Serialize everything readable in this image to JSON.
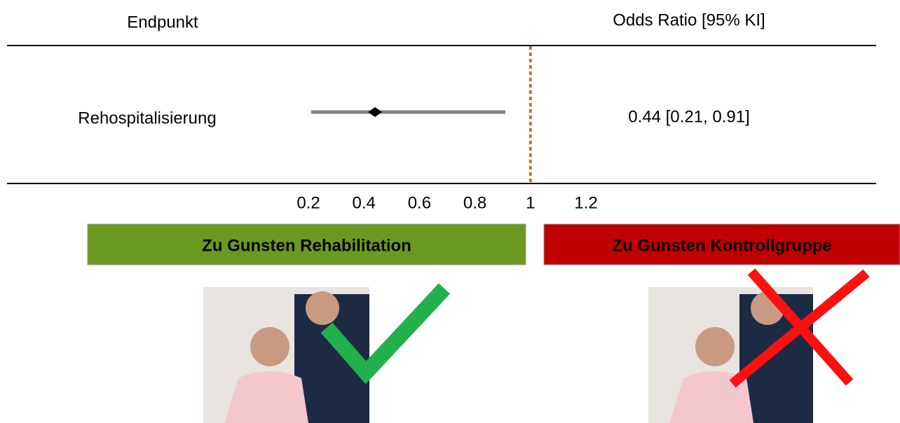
{
  "chart_data": {
    "type": "forest",
    "column_headers": [
      "Endpunkt",
      "Odds Ratio [95% KI]"
    ],
    "categories": [
      "Rehospitalisierung"
    ],
    "values": [
      0.44
    ],
    "ci_low": [
      0.21
    ],
    "ci_high": [
      0.91
    ],
    "value_labels": [
      "0.44 [0.21, 0.91]"
    ],
    "reference": 1,
    "xlim": [
      0.2,
      1.2
    ],
    "xticks": [
      0.2,
      0.4,
      0.6,
      0.8,
      1,
      1.2
    ],
    "color": "#000000",
    "ci_color": "#808080",
    "reference_color": "#c8741a",
    "favors": [
      {
        "label": "Zu Gunsten Rehabilitation",
        "color": "#6b9a21"
      },
      {
        "label": "Zu Gunsten Kontrollgruppe",
        "color": "#c00000"
      }
    ]
  }
}
